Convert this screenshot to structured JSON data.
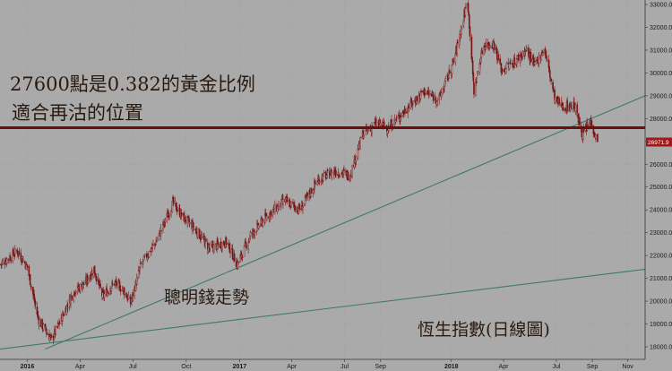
{
  "chart_data": {
    "type": "candlestick",
    "title": "",
    "xlabel": "",
    "ylabel": "",
    "ylim": [
      17500,
      33200
    ],
    "y_ticks": [
      18000,
      19000,
      20000,
      21000,
      22000,
      23000,
      24000,
      25000,
      26000,
      27000,
      28000,
      29000,
      30000,
      31000,
      32000,
      33000
    ],
    "x_ticks": [
      {
        "label": "2016",
        "date": "2016-01-01",
        "bold": true
      },
      {
        "label": "Apr",
        "date": "2016-04-01",
        "bold": false
      },
      {
        "label": "Jul",
        "date": "2016-07-01",
        "bold": false
      },
      {
        "label": "Oct",
        "date": "2016-10-01",
        "bold": false
      },
      {
        "label": "2017",
        "date": "2017-01-01",
        "bold": true
      },
      {
        "label": "Apr",
        "date": "2017-04-01",
        "bold": false
      },
      {
        "label": "Jul",
        "date": "2017-07-01",
        "bold": false
      },
      {
        "label": "Sep",
        "date": "2017-09-01",
        "bold": false
      },
      {
        "label": "2018",
        "date": "2018-01-01",
        "bold": true
      },
      {
        "label": "Apr",
        "date": "2018-04-01",
        "bold": false
      },
      {
        "label": "Jul",
        "date": "2018-07-01",
        "bold": false
      },
      {
        "label": "Sep",
        "date": "2018-09-01",
        "bold": false
      },
      {
        "label": "Nov",
        "date": "2018-11-01",
        "bold": false
      }
    ],
    "x_range": [
      "2015-11-15",
      "2018-12-01"
    ],
    "series": [
      {
        "type": "candlestick",
        "daily_closes": [
          [
            "2015-11-15",
            21600
          ],
          [
            "2015-12-15",
            22200
          ],
          [
            "2016-01-01",
            21500
          ],
          [
            "2016-01-20",
            19200
          ],
          [
            "2016-02-12",
            18300
          ],
          [
            "2016-03-01",
            19300
          ],
          [
            "2016-03-20",
            20400
          ],
          [
            "2016-04-10",
            20800
          ],
          [
            "2016-04-25",
            21400
          ],
          [
            "2016-05-10",
            20200
          ],
          [
            "2016-05-30",
            20800
          ],
          [
            "2016-06-15",
            20500
          ],
          [
            "2016-06-27",
            19900
          ],
          [
            "2016-07-15",
            21600
          ],
          [
            "2016-08-10",
            22600
          ],
          [
            "2016-09-08",
            24300
          ],
          [
            "2016-09-25",
            23700
          ],
          [
            "2016-10-15",
            23200
          ],
          [
            "2016-11-10",
            22300
          ],
          [
            "2016-12-10",
            22600
          ],
          [
            "2016-12-28",
            21600
          ],
          [
            "2017-01-20",
            22900
          ],
          [
            "2017-02-20",
            23800
          ],
          [
            "2017-03-20",
            24400
          ],
          [
            "2017-04-15",
            24000
          ],
          [
            "2017-05-15",
            25300
          ],
          [
            "2017-06-15",
            25700
          ],
          [
            "2017-07-10",
            25500
          ],
          [
            "2017-08-01",
            27300
          ],
          [
            "2017-08-25",
            27800
          ],
          [
            "2017-09-15",
            27600
          ],
          [
            "2017-10-15",
            28400
          ],
          [
            "2017-11-15",
            29200
          ],
          [
            "2017-12-10",
            28800
          ],
          [
            "2018-01-05",
            30500
          ],
          [
            "2018-01-29",
            33200
          ],
          [
            "2018-02-09",
            29200
          ],
          [
            "2018-02-25",
            31200
          ],
          [
            "2018-03-15",
            31300
          ],
          [
            "2018-03-29",
            30100
          ],
          [
            "2018-04-20",
            30500
          ],
          [
            "2018-05-10",
            31000
          ],
          [
            "2018-05-25",
            30300
          ],
          [
            "2018-06-10",
            31100
          ],
          [
            "2018-06-29",
            28800
          ],
          [
            "2018-07-15",
            28500
          ],
          [
            "2018-08-01",
            28600
          ],
          [
            "2018-08-15",
            27300
          ],
          [
            "2018-08-30",
            27900
          ],
          [
            "2018-09-11",
            26800
          ]
        ]
      }
    ],
    "trendlines": [
      {
        "color": "#3f7a66",
        "from": [
          "2016-02-01",
          17900
        ],
        "to": [
          "2018-12-01",
          29000
        ]
      },
      {
        "color": "#3f7a66",
        "from": [
          "2015-11-15",
          17900
        ],
        "to": [
          "2018-12-01",
          21400
        ]
      }
    ],
    "horizontal_lines": [
      {
        "value": 27600,
        "color": "#6a0e0e"
      }
    ],
    "last_price_badge": {
      "label": "26971.9",
      "value": 26971.9,
      "color": "#a01818"
    },
    "candle_color": "#7a1414",
    "background_color": "#aaaaaa",
    "annotations": [
      {
        "id": "golden",
        "text": "27600點是0.382的黃金比例"
      },
      {
        "id": "retest",
        "text": "適合再沽的位置"
      },
      {
        "id": "smart_money",
        "text": "聰明錢走勢"
      },
      {
        "id": "hsi",
        "text": "恆生指數(日線圖)"
      }
    ]
  }
}
